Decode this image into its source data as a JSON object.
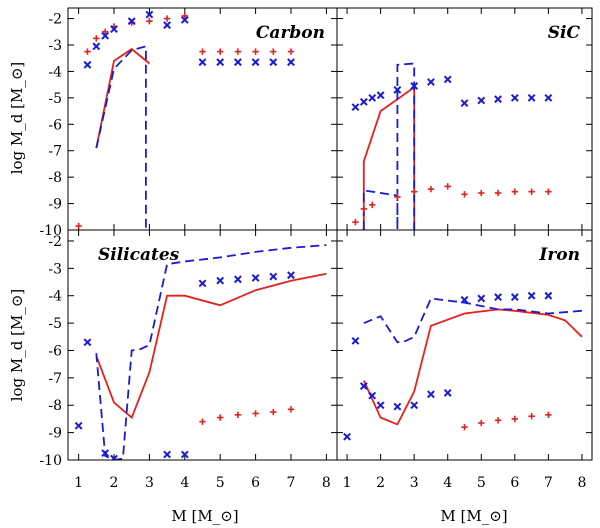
{
  "figure": {
    "y_axis_label": "log M_d [M_⊙]",
    "x_axis_label": "M [M_⊙]"
  },
  "colors": {
    "red": "#e8201c",
    "blue": "#1a1ad6"
  },
  "chart_data": [
    {
      "type": "line",
      "title": "Carbon",
      "xlim": [
        0.7,
        8.3
      ],
      "ylim": [
        -10,
        -1.6
      ],
      "xticks": [
        1,
        2,
        3,
        4,
        5,
        6,
        7,
        8
      ],
      "yticks": [
        -10,
        -9,
        -8,
        -7,
        -6,
        -5,
        -4,
        -3,
        -2
      ],
      "series": [
        {
          "name": "red solid",
          "style": "solid",
          "color": "#e8201c",
          "x": [
            1.5,
            2.0,
            2.5,
            3.0
          ],
          "y": [
            -6.9,
            -3.6,
            -3.15,
            -3.7
          ]
        },
        {
          "name": "blue dashed",
          "style": "dashed",
          "color": "#1a1ad6",
          "x": [
            1.5,
            2.0,
            2.5,
            2.9,
            2.9
          ],
          "y": [
            -6.9,
            -3.9,
            -3.2,
            -3.05,
            -10.0
          ]
        },
        {
          "name": "red plus",
          "style": "plus",
          "color": "#e8201c",
          "x": [
            1.0,
            1.25,
            1.5,
            1.75,
            2.0,
            2.5,
            3.0,
            3.5,
            4.0,
            4.5,
            5.0,
            5.5,
            6.0,
            6.5,
            7.0
          ],
          "y": [
            -9.85,
            -3.25,
            -2.75,
            -2.5,
            -2.3,
            -2.15,
            -2.1,
            -2.0,
            -1.9,
            -3.25,
            -3.25,
            -3.25,
            -3.25,
            -3.25,
            -3.25
          ]
        },
        {
          "name": "blue cross",
          "style": "cross",
          "color": "#1a1ad6",
          "x": [
            1.25,
            1.5,
            1.75,
            2.0,
            2.5,
            3.0,
            3.5,
            4.0,
            4.5,
            5.0,
            5.5,
            6.0,
            6.5,
            7.0
          ],
          "y": [
            -3.75,
            -3.05,
            -2.65,
            -2.4,
            -2.1,
            -1.85,
            -2.25,
            -2.05,
            -3.65,
            -3.65,
            -3.65,
            -3.65,
            -3.65,
            -3.65
          ]
        }
      ]
    },
    {
      "type": "line",
      "title": "SiC",
      "xlim": [
        0.7,
        8.3
      ],
      "ylim": [
        -10,
        -1.6
      ],
      "xticks": [
        1,
        2,
        3,
        4,
        5,
        6,
        7,
        8
      ],
      "yticks": [
        -10,
        -9,
        -8,
        -7,
        -6,
        -5,
        -4,
        -3,
        -2
      ],
      "series": [
        {
          "name": "red solid",
          "style": "solid",
          "color": "#e8201c",
          "x": [
            1.5,
            1.5,
            2.0,
            3.0,
            3.0
          ],
          "y": [
            -10.0,
            -7.4,
            -5.5,
            -4.6,
            -10.0
          ]
        },
        {
          "name": "blue dashed",
          "style": "dashed",
          "color": "#1a1ad6",
          "x": [
            1.5,
            1.5,
            2.0,
            2.5,
            2.5,
            2.5,
            3.0,
            3.0
          ],
          "y": [
            -10.0,
            -8.5,
            -8.6,
            -8.7,
            -10.0,
            -3.75,
            -3.7,
            -10.0
          ]
        },
        {
          "name": "red plus",
          "style": "plus",
          "color": "#e8201c",
          "x": [
            1.25,
            1.5,
            1.75,
            2.5,
            3.0,
            3.5,
            4.0,
            4.5,
            5.0,
            5.5,
            6.0,
            6.5,
            7.0
          ],
          "y": [
            -9.7,
            -9.2,
            -9.05,
            -8.75,
            -8.55,
            -8.45,
            -8.35,
            -8.65,
            -8.6,
            -8.6,
            -8.55,
            -8.55,
            -8.55
          ]
        },
        {
          "name": "blue cross",
          "style": "cross",
          "color": "#1a1ad6",
          "x": [
            1.25,
            1.5,
            1.75,
            2.0,
            2.5,
            3.0,
            3.5,
            4.0,
            4.5,
            5.0,
            5.5,
            6.0,
            6.5,
            7.0
          ],
          "y": [
            -5.35,
            -5.15,
            -5.0,
            -4.9,
            -4.7,
            -4.55,
            -4.4,
            -4.3,
            -5.2,
            -5.1,
            -5.05,
            -5.0,
            -5.0,
            -5.0
          ]
        }
      ]
    },
    {
      "type": "line",
      "title": "Silicates",
      "xlim": [
        0.7,
        8.3
      ],
      "ylim": [
        -10,
        -1.6
      ],
      "xticks": [
        1,
        2,
        3,
        4,
        5,
        6,
        7,
        8
      ],
      "yticks": [
        -10,
        -9,
        -8,
        -7,
        -6,
        -5,
        -4,
        -3,
        -2
      ],
      "series": [
        {
          "name": "red solid",
          "style": "solid",
          "color": "#e8201c",
          "x": [
            1.5,
            2.0,
            2.5,
            3.0,
            3.5,
            4.0,
            5.0,
            6.0,
            7.0,
            8.0
          ],
          "y": [
            -6.2,
            -7.9,
            -8.45,
            -6.8,
            -4.0,
            -4.0,
            -4.35,
            -3.8,
            -3.45,
            -3.2
          ]
        },
        {
          "name": "blue dashed",
          "style": "dashed",
          "color": "#1a1ad6",
          "x": [
            1.5,
            1.75,
            2.0,
            2.25,
            2.5,
            2.75,
            3.0,
            3.5,
            4.0,
            5.0,
            6.0,
            7.0,
            8.0
          ],
          "y": [
            -6.1,
            -9.85,
            -10.0,
            -9.95,
            -6.0,
            -5.95,
            -5.8,
            -2.85,
            -2.75,
            -2.6,
            -2.4,
            -2.25,
            -2.15
          ]
        },
        {
          "name": "red plus",
          "style": "plus",
          "color": "#e8201c",
          "x": [
            4.5,
            5.0,
            5.5,
            6.0,
            6.5,
            7.0
          ],
          "y": [
            -8.6,
            -8.45,
            -8.35,
            -8.3,
            -8.25,
            -8.15
          ]
        },
        {
          "name": "blue cross",
          "style": "cross",
          "color": "#1a1ad6",
          "x": [
            1.0,
            1.25,
            1.75,
            2.0,
            3.5,
            4.0,
            4.5,
            5.0,
            5.5,
            6.0,
            6.5,
            7.0
          ],
          "y": [
            -8.75,
            -5.7,
            -9.75,
            -9.95,
            -9.8,
            -9.8,
            -3.55,
            -3.45,
            -3.4,
            -3.35,
            -3.3,
            -3.25
          ]
        }
      ]
    },
    {
      "type": "line",
      "title": "Iron",
      "xlim": [
        0.7,
        8.3
      ],
      "ylim": [
        -10,
        -1.6
      ],
      "xticks": [
        1,
        2,
        3,
        4,
        5,
        6,
        7,
        8
      ],
      "yticks": [
        -10,
        -9,
        -8,
        -7,
        -6,
        -5,
        -4,
        -3,
        -2
      ],
      "series": [
        {
          "name": "red solid",
          "style": "solid",
          "color": "#e8201c",
          "x": [
            1.5,
            2.0,
            2.5,
            3.0,
            3.5,
            4.5,
            5.5,
            6.0,
            7.0,
            7.5,
            8.0
          ],
          "y": [
            -7.1,
            -8.45,
            -8.7,
            -7.5,
            -5.1,
            -4.65,
            -4.5,
            -4.55,
            -4.7,
            -4.9,
            -5.5
          ]
        },
        {
          "name": "blue dashed",
          "style": "dashed",
          "color": "#1a1ad6",
          "x": [
            1.5,
            2.0,
            2.5,
            2.75,
            3.0,
            3.5,
            4.5,
            5.5,
            6.0,
            7.0,
            8.0
          ],
          "y": [
            -5.0,
            -4.75,
            -5.7,
            -5.65,
            -5.5,
            -4.1,
            -4.25,
            -4.5,
            -4.5,
            -4.65,
            -4.55
          ]
        },
        {
          "name": "red plus",
          "style": "plus",
          "color": "#e8201c",
          "x": [
            4.5,
            5.0,
            5.5,
            6.0,
            6.5,
            7.0
          ],
          "y": [
            -8.8,
            -8.65,
            -8.55,
            -8.5,
            -8.4,
            -8.35
          ]
        },
        {
          "name": "blue cross",
          "style": "cross",
          "color": "#1a1ad6",
          "x": [
            1.0,
            1.25,
            1.5,
            1.75,
            2.0,
            2.5,
            3.0,
            3.5,
            4.0,
            4.5,
            5.0,
            5.5,
            6.0,
            6.5,
            7.0
          ],
          "y": [
            -9.15,
            -5.65,
            -7.3,
            -7.65,
            -8.0,
            -8.05,
            -8.0,
            -7.6,
            -7.55,
            -4.15,
            -4.1,
            -4.05,
            -4.05,
            -4.0,
            -4.0
          ]
        }
      ]
    }
  ]
}
